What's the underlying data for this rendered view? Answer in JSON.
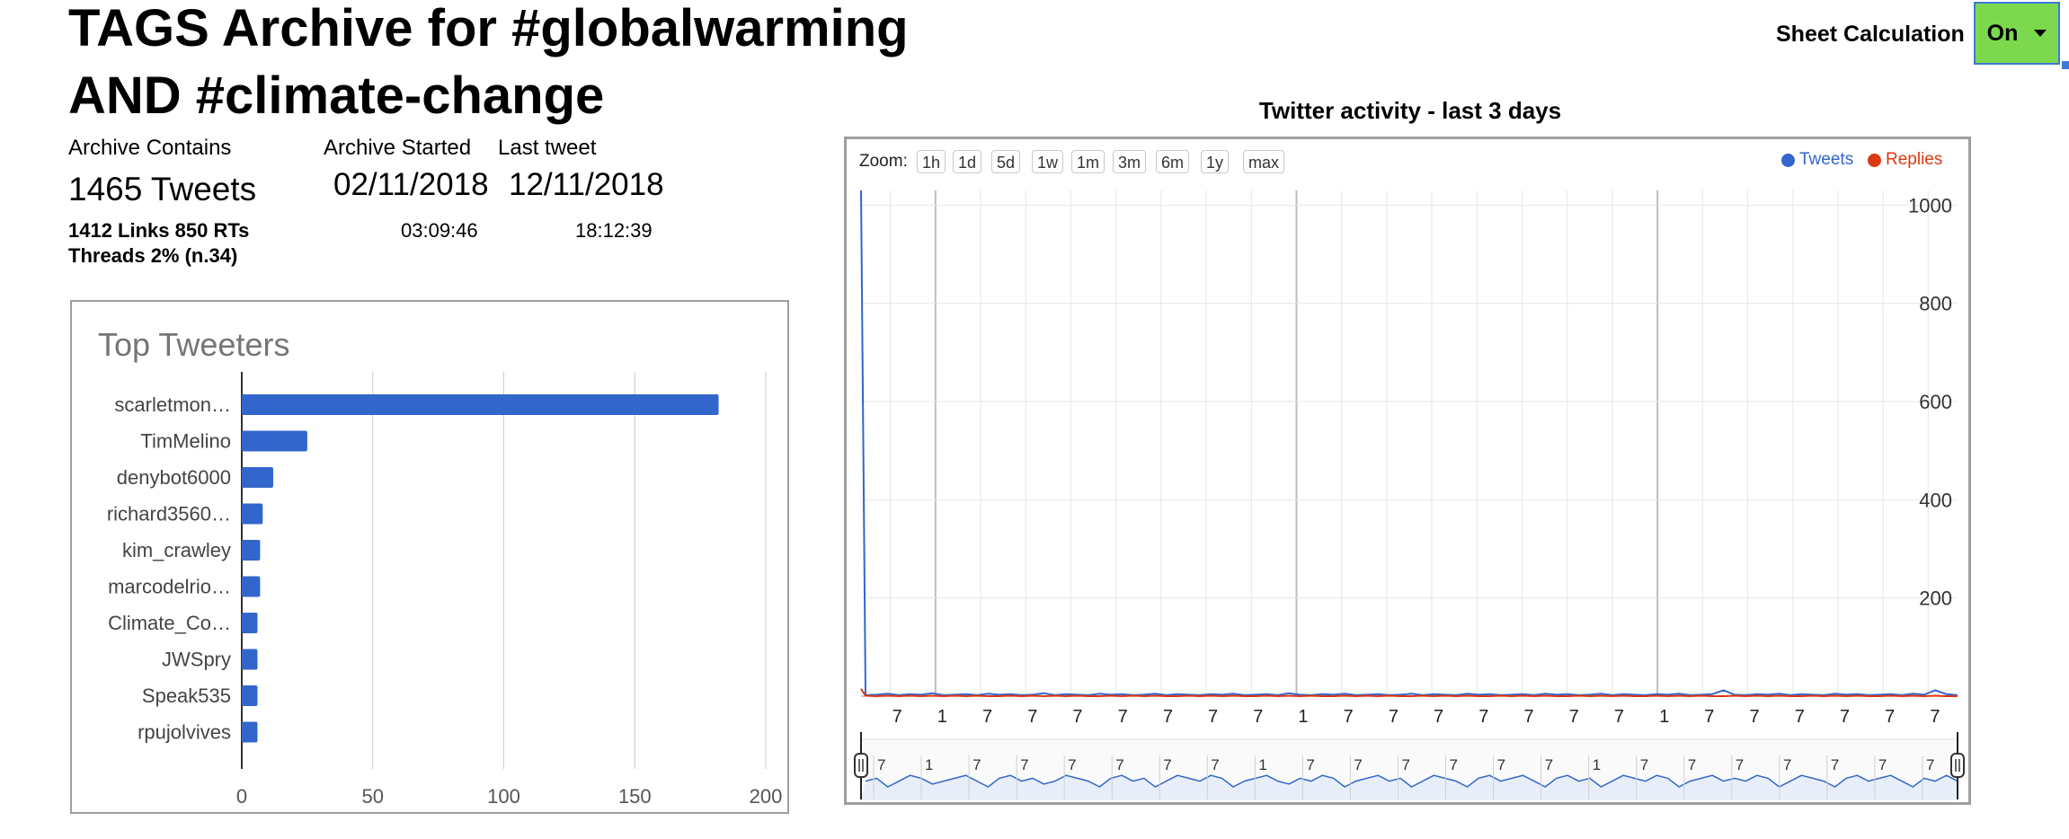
{
  "header": {
    "title_line1": "TAGS Archive for #globalwarming",
    "title_line2": "AND #climate-change"
  },
  "stats": {
    "archive_contains_label": "Archive Contains",
    "archive_started_label": "Archive Started",
    "last_tweet_label": "Last tweet",
    "tweets": "1465 Tweets",
    "links_rts": "1412 Links 850 RTs",
    "threads": "Threads 2% (n.34)",
    "started_date": "02/11/2018",
    "started_time": "03:09:46",
    "last_date": "12/11/2018",
    "last_time": "18:12:39"
  },
  "sheet_calc": {
    "label": "Sheet Calculation",
    "value": "On"
  },
  "colors": {
    "bar": "#3366cc",
    "tweets": "#3366cc",
    "replies": "#dc3912",
    "toggle_bg": "#7cd94d",
    "toggle_border": "#3c78d8"
  },
  "activity": {
    "title": "Twitter activity - last 3 days",
    "zoom_label": "Zoom:",
    "zoom_options": [
      "1h",
      "1d",
      "5d",
      "1w",
      "1m",
      "3m",
      "6m",
      "1y",
      "max"
    ],
    "legend": [
      {
        "name": "Tweets",
        "color": "#3366cc"
      },
      {
        "name": "Replies",
        "color": "#dc3912"
      }
    ]
  },
  "chart_data": [
    {
      "type": "bar",
      "orientation": "horizontal",
      "title": "Top Tweeters",
      "categories": [
        "scarletmon…",
        "TimMelino",
        "denybot6000",
        "richard3560…",
        "kim_crawley",
        "marcodelrio…",
        "Climate_Co…",
        "JWSpry",
        "Speak535",
        "rpujolvives"
      ],
      "values": [
        182,
        25,
        12,
        8,
        7,
        7,
        6,
        6,
        6,
        6
      ],
      "xlim": [
        0,
        200
      ],
      "xticks": [
        0,
        50,
        100,
        150,
        200
      ],
      "grid": true
    },
    {
      "type": "line",
      "title": "Twitter activity - last 3 days",
      "ylim": [
        0,
        1030
      ],
      "yticks": [
        200,
        400,
        600,
        800,
        1000
      ],
      "xtick_labels": [
        "7",
        "1",
        "7",
        "7",
        "7",
        "7",
        "7",
        "7",
        "7",
        "1",
        "7",
        "7",
        "7",
        "7",
        "7",
        "7",
        "7",
        "1",
        "7",
        "7",
        "7",
        "7",
        "7",
        "7"
      ],
      "series": [
        {
          "name": "Tweets",
          "values": [
            1030,
            2,
            3,
            5,
            2,
            4,
            3,
            6,
            2,
            3,
            4,
            2,
            5,
            3,
            4,
            2,
            3,
            6,
            2,
            4,
            3,
            2,
            5,
            3,
            4,
            2,
            3,
            5,
            2,
            4,
            3,
            2,
            4,
            3,
            5,
            2,
            3,
            4,
            2,
            6,
            3,
            2,
            4,
            3,
            5,
            2,
            3,
            4,
            2,
            3,
            5,
            2,
            4,
            3,
            2,
            5,
            3,
            4,
            2,
            3,
            4,
            2,
            5,
            3,
            4,
            2,
            3,
            5,
            2,
            4,
            3,
            2,
            4,
            3,
            5,
            2,
            3,
            4,
            12,
            3,
            2,
            4,
            3,
            5,
            2,
            4,
            3,
            2,
            5,
            3,
            4,
            2,
            3,
            4,
            2,
            5,
            3,
            12,
            4,
            2
          ]
        },
        {
          "name": "Replies",
          "values": [
            15,
            1,
            0,
            1,
            0,
            1,
            0,
            1,
            0,
            1,
            0,
            1,
            0,
            0,
            1,
            0,
            1,
            0,
            1,
            0,
            1,
            0,
            0,
            1,
            0,
            1,
            0,
            1,
            0,
            0,
            1,
            0,
            1,
            0,
            1,
            0,
            0,
            1,
            0,
            1,
            0,
            1,
            0,
            0,
            1,
            0,
            1,
            0,
            1,
            0,
            0,
            1,
            0,
            1,
            0,
            1,
            0,
            0,
            1,
            0,
            1,
            0,
            1,
            0,
            0,
            1,
            0,
            1,
            0,
            1,
            0,
            0,
            1,
            0,
            1,
            0,
            1,
            0,
            0,
            1,
            0,
            1,
            0,
            1,
            0,
            0,
            1,
            0,
            1,
            0,
            1,
            0,
            0,
            1,
            0,
            1,
            0,
            1,
            0,
            0
          ]
        }
      ],
      "navigator_labels": [
        "7",
        "1",
        "7",
        "7",
        "7",
        "7",
        "7",
        "7",
        "1",
        "7",
        "7",
        "7",
        "7",
        "7",
        "7",
        "1",
        "7",
        "7",
        "7",
        "7",
        "7",
        "7",
        "7"
      ]
    }
  ]
}
